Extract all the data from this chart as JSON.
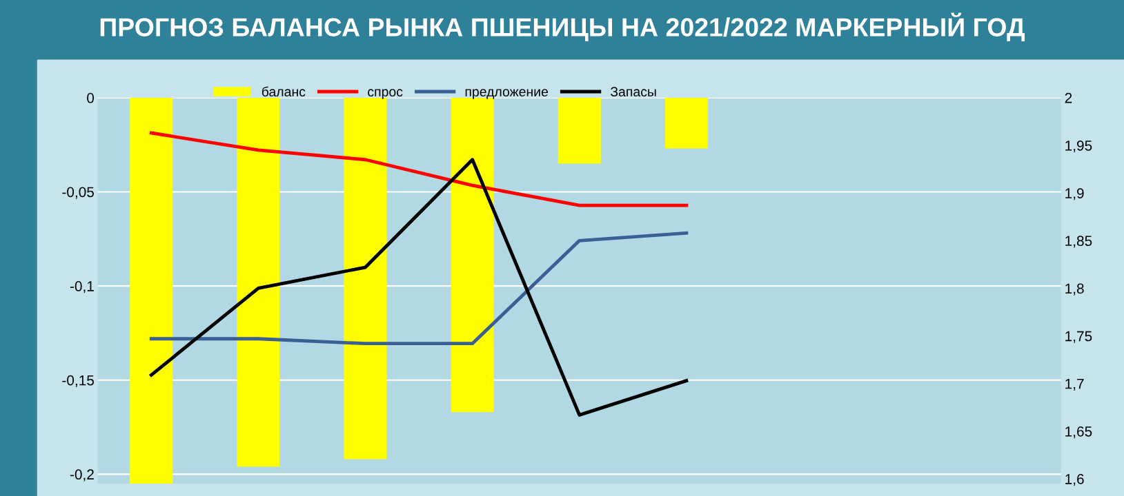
{
  "chart_data": {
    "type": "bar",
    "title": "ПРОГНОЗ БАЛАНСА РЫНКА ПШЕНИЦЫ НА 2021/2022 МАРКЕРНЫЙ ГОД",
    "categories": [
      null,
      null,
      null,
      null,
      null,
      null,
      null,
      null,
      null
    ],
    "series": [
      {
        "name": "баланс",
        "color": "#ffff00",
        "values": [
          -0.205,
          -0.196,
          -0.192,
          -0.167,
          -0.035,
          -0.027,
          null,
          null,
          null
        ]
      },
      {
        "name": "спрос",
        "type": "line",
        "axis": "y2",
        "color": "#ff0000",
        "values": [
          1.963,
          1.945,
          1.935,
          1.908,
          1.887,
          1.887,
          null,
          null,
          null
        ]
      },
      {
        "name": "предложение",
        "type": "line",
        "axis": "y2",
        "color": "#3a5f94",
        "values": [
          1.747,
          1.747,
          1.742,
          1.742,
          1.85,
          1.858,
          null,
          null,
          null
        ]
      },
      {
        "name": "Запасы",
        "type": "line",
        "axis": "y2",
        "color": "#000000",
        "values": [
          1.709,
          1.8,
          1.822,
          1.935,
          1.667,
          1.703,
          null,
          null,
          null
        ]
      }
    ],
    "ylim": [
      -0.205,
      0
    ],
    "yticks": [
      {
        "value": -0.2,
        "label": "-0,2"
      },
      {
        "value": -0.15,
        "label": "-0,15"
      },
      {
        "value": -0.1,
        "label": "-0,1"
      },
      {
        "value": -0.05,
        "label": "-0,05"
      },
      0
    ],
    "y2lim": [
      1.595,
      2
    ],
    "y2ticks": [
      {
        "value": 1.6,
        "label": "1,6"
      },
      {
        "value": 1.65,
        "label": "1,65"
      },
      {
        "value": 1.7,
        "label": "1,7"
      },
      {
        "value": 1.75,
        "label": "1,75"
      },
      {
        "value": 1.8,
        "label": "1,8"
      },
      {
        "value": 1.85,
        "label": "1,85"
      },
      {
        "value": 1.9,
        "label": "1,9"
      },
      {
        "value": 1.95,
        "label": "1,95"
      },
      2
    ],
    "grid": "y",
    "legend": "top",
    "marker": "none",
    "line_style": "solid"
  }
}
